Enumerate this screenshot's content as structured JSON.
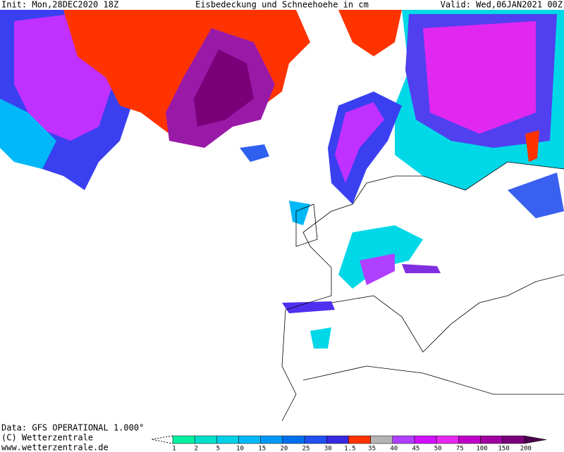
{
  "header": {
    "init": "Init: Mon,28DEC2020 18Z",
    "title": "Eisbedeckung und Schneehoehe in cm",
    "valid": "Valid: Wed,06JAN2021 00Z"
  },
  "footer": {
    "source": "Data: GFS OPERATIONAL 1.000°",
    "copyright": "(C) Wetterzentrale",
    "url": "www.wetterzentrale.de"
  },
  "legend": {
    "labels": [
      "1",
      "2",
      "5",
      "10",
      "15",
      "20",
      "25",
      "30",
      "1.5",
      "35",
      "40",
      "45",
      "50",
      "75",
      "100",
      "150",
      "200"
    ],
    "colors": [
      "#00f0a0",
      "#00e0c8",
      "#00d0e8",
      "#00b8f8",
      "#0098f8",
      "#0070f0",
      "#2050f0",
      "#3828e0",
      "#ff3300",
      "#b4b4b4",
      "#b040ff",
      "#d010ff",
      "#e828f0",
      "#c000c8",
      "#a000a0",
      "#7a007a",
      "#4a004a"
    ]
  }
}
